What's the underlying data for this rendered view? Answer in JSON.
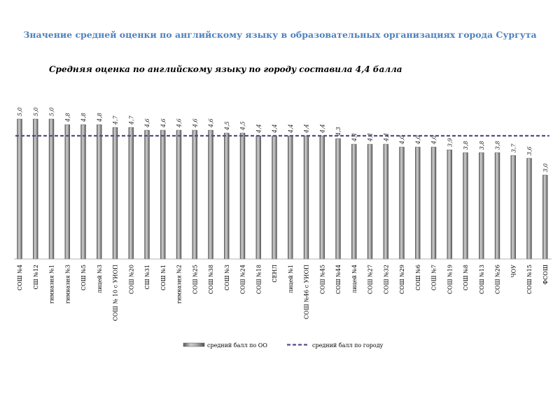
{
  "page": {
    "title": "Значение средней оценки по английскому языку в образовательных организациях города Сургута"
  },
  "chart_data": {
    "type": "bar",
    "title": "Средняя оценка по английскому языку по городу составила 4,4 балла",
    "categories": [
      "СОШ №4",
      "СШ №12",
      "гимназия №1",
      "гимназия №3",
      "СОШ №5",
      "лицей №3",
      "СОШ № 10 с УИОП",
      "СОШ №20",
      "СШ №31",
      "СОШ №1",
      "гимназия №2",
      "СОШ №25",
      "СОШ №38",
      "СОШ №3",
      "СОШ №24",
      "СОШ №18",
      "СЕНЛ",
      "лицей №1",
      "СОШ №46 с УИОП",
      "СОШ №45",
      "СОШ №44",
      "лицей №4",
      "СОШ №27",
      "СОШ №32",
      "СОШ №29",
      "СОШ №6",
      "СОШ №7",
      "СОШ №19",
      "СОШ №8",
      "СОШ №13",
      "СОШ №26",
      "ЧОУ",
      "СОШ №15",
      "ФСОШ"
    ],
    "values": [
      5.0,
      5.0,
      5.0,
      4.8,
      4.8,
      4.8,
      4.7,
      4.7,
      4.6,
      4.6,
      4.6,
      4.6,
      4.6,
      4.5,
      4.5,
      4.4,
      4.4,
      4.4,
      4.4,
      4.4,
      4.3,
      4.1,
      4.1,
      4.1,
      4.0,
      4.0,
      4.0,
      3.9,
      3.8,
      3.8,
      3.8,
      3.7,
      3.6,
      3.0
    ],
    "value_labels": [
      "5,0",
      "5,0",
      "5,0",
      "4,8",
      "4,8",
      "4,8",
      "4,7",
      "4,7",
      "4,6",
      "4,6",
      "4,6",
      "4,6",
      "4,6",
      "4,5",
      "4,5",
      "4,4",
      "4,4",
      "4,4",
      "4,4",
      "4,4",
      "4,3",
      "4,1",
      "4,1",
      "4,1",
      "4,0",
      "4,0",
      "4,0",
      "3,9",
      "3,8",
      "3,8",
      "3,8",
      "3,7",
      "3,6",
      "3,0"
    ],
    "reference_line": {
      "name": "средний балл по городу",
      "value": 4.4,
      "color": "#5b4a8b",
      "style": "dashed"
    },
    "series": [
      {
        "name": "средний балл по ОО",
        "color": "#8c8c8c"
      }
    ],
    "ylim": [
      0,
      5
    ],
    "legend": [
      "средний балл по ОО",
      "средний балл по городу"
    ],
    "legend_position": "bottom",
    "grid": false
  }
}
